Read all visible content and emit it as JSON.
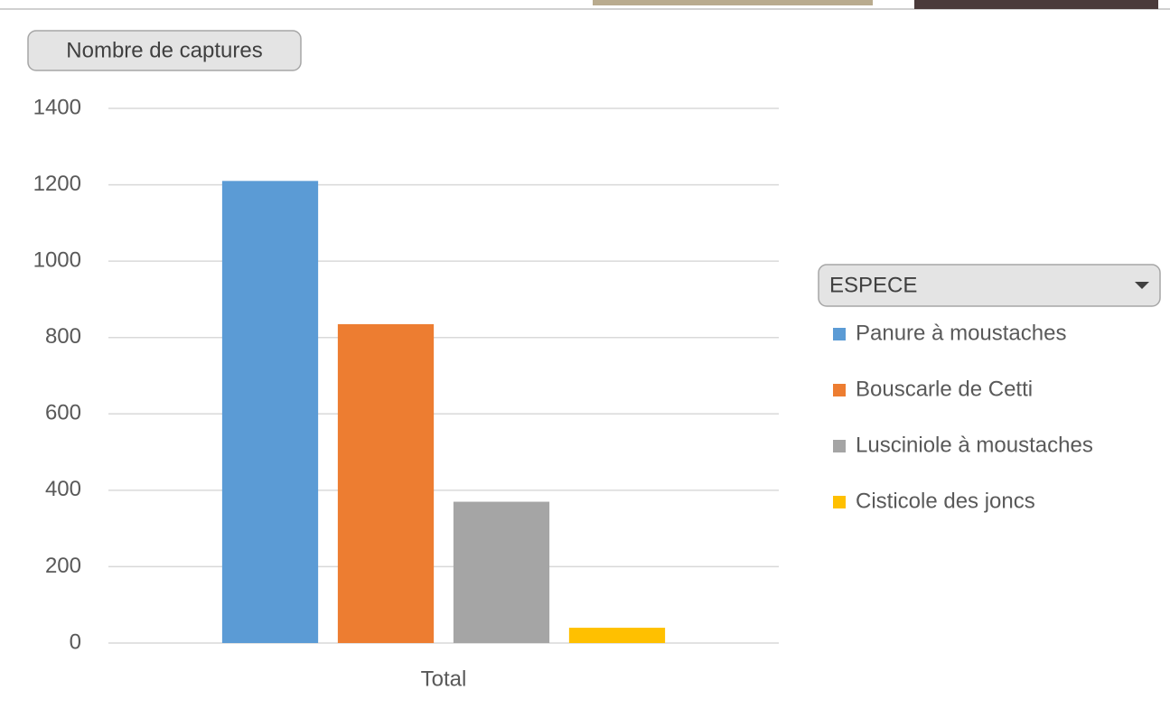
{
  "chart_data": {
    "type": "bar",
    "title": "Nombre de captures",
    "legend_title": "ESPECE",
    "categories": [
      "Total"
    ],
    "series": [
      {
        "name": "Panure à moustaches",
        "color": "#5b9bd5",
        "values": [
          1210
        ]
      },
      {
        "name": "Bouscarle de Cetti",
        "color": "#ed7d31",
        "values": [
          835
        ]
      },
      {
        "name": "Lusciniole à moustaches",
        "color": "#a5a5a5",
        "values": [
          370
        ]
      },
      {
        "name": "Cisticole des joncs",
        "color": "#ffc000",
        "values": [
          40
        ]
      }
    ],
    "ylim": [
      0,
      1400
    ],
    "yticks": [
      0,
      200,
      400,
      600,
      800,
      1000,
      1200,
      1400
    ],
    "grid": true,
    "legend": "right"
  }
}
